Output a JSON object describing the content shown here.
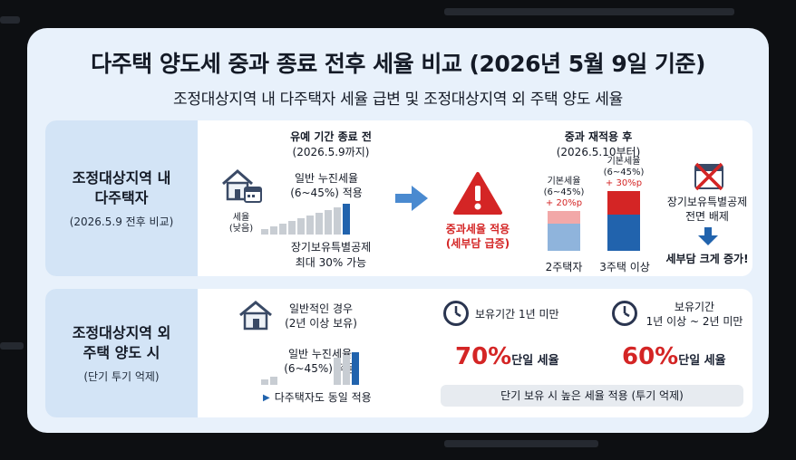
{
  "title": "다주택 양도세 중과 종료 전후 세율 비교 (2026년 5월 9일 기준)",
  "subtitle": "조정대상지역 내  다주택자 세율 급변 및 조정대상지역 외 주택 양도 세율",
  "section1": {
    "side_title_1": "조정대상지역 내",
    "side_title_2": "다주택자",
    "side_sub": "(2026.5.9 전후 비교)",
    "before_title": "유예 기간 종료 전",
    "before_date": "(2026.5.9까지)",
    "before_rate_1": "일반 누진세율",
    "before_rate_2": "(6~45%) 적용",
    "tax_low_1": "세율",
    "tax_low_2": "(낮음)",
    "deduction_1": "장기보유특별공제",
    "deduction_2": "최대 30% 가능",
    "warning_1": "중과세율 적용",
    "warning_2": "(세부담 급증)",
    "after_title": "중과 재적용 후",
    "after_date": "(2026.5.10부터)",
    "bar1": {
      "base_1": "기본세율",
      "base_2": "(6~45%)",
      "extra": "+ 20%p",
      "label": "2주택자"
    },
    "bar2": {
      "base_1": "기본세율",
      "base_2": "(6~45%)",
      "extra": "+ 30%p",
      "label": "3주택 이상"
    },
    "exclusion_1": "장기보유특별공제",
    "exclusion_2": "전면 배제",
    "result": "세부담 크게 증가!"
  },
  "section2": {
    "side_title_1": "조정대상지역 외",
    "side_title_2": "주택 양도 시",
    "side_sub": "(단기 투기 억제)",
    "normal_1": "일반적인 경우",
    "normal_2": "(2년 이상 보유)",
    "rate_1": "일반 누진세율",
    "rate_2": "(6~45%) 적용",
    "multi_note": "다주택자도 동일 적용",
    "hold1_label": "보유기간 1년 미만",
    "hold1_rate": "70%",
    "hold1_suffix": "단일 세율",
    "hold2_label_1": "보유기간",
    "hold2_label_2": "1년 이상 ~ 2년 미만",
    "hold2_rate": "60%",
    "hold2_suffix": "단일 세율",
    "short_term_note": "단기 보유 시 높은 세율 적용 (투기 억제)"
  },
  "colors": {
    "accent_red": "#d42525",
    "accent_blue": "#2163ad",
    "light_blue": "#8fb4dc",
    "light_red": "#f2a8a8"
  }
}
